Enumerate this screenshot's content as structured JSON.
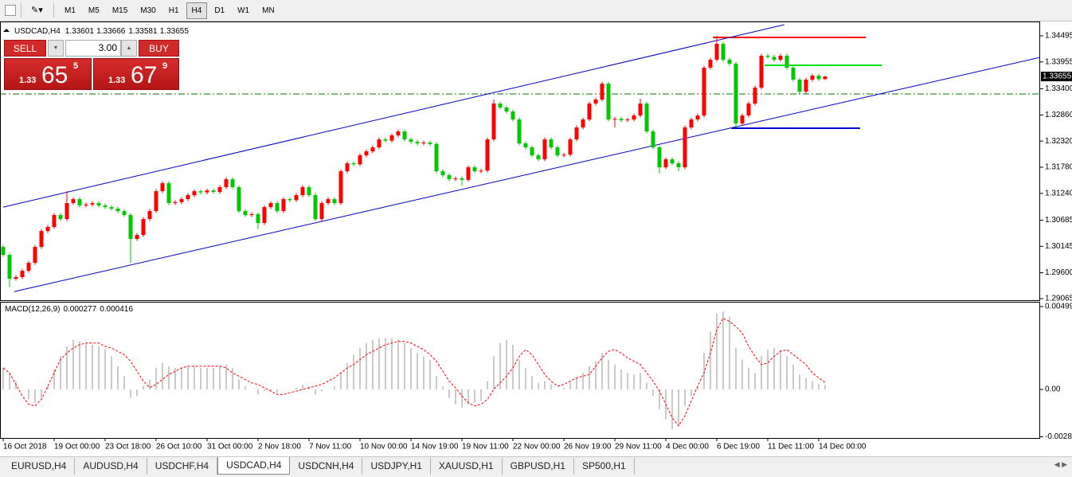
{
  "toolbar": {
    "timeframes": [
      "M1",
      "M5",
      "M15",
      "M30",
      "H1",
      "H4",
      "D1",
      "W1",
      "MN"
    ],
    "active": "H4"
  },
  "trade_panel": {
    "sell": "SELL",
    "buy": "BUY",
    "lot": "3.00",
    "sell_price": {
      "big_figure": "1.33",
      "pips": "65",
      "fraction": "5"
    },
    "buy_price": {
      "big_figure": "1.33",
      "pips": "67",
      "fraction": "9"
    }
  },
  "tabs": {
    "items": [
      "EURUSD,H4",
      "AUDUSD,H4",
      "USDCHF,H4",
      "USDCAD,H4",
      "USDCNH,H4",
      "USDJPY,H1",
      "XAUUSD,H1",
      "GBPUSD,H1",
      "SP500,H1"
    ],
    "active": "USDCAD,H4"
  },
  "chart_data": [
    {
      "type": "candlestick",
      "title": "USDCAD,H4",
      "up_color": "#ff0000",
      "down_color": "#00c800",
      "categories": [
        "16 Oct 2018",
        null,
        null,
        null,
        null,
        null,
        null,
        null,
        "19 Oct 00:00",
        null,
        null,
        null,
        null,
        null,
        null,
        null,
        "23 Oct 18:00",
        null,
        null,
        null,
        null,
        null,
        null,
        null,
        "26 Oct 10:00",
        null,
        null,
        null,
        null,
        null,
        null,
        null,
        "31 Oct 00:00",
        null,
        null,
        null,
        null,
        null,
        null,
        null,
        "2 Nov 18:00",
        null,
        null,
        null,
        null,
        null,
        null,
        null,
        "7 Nov 11:00",
        null,
        null,
        null,
        null,
        null,
        null,
        null,
        "10 Nov 00:00",
        null,
        null,
        null,
        null,
        null,
        null,
        null,
        "14 Nov 19:00",
        null,
        null,
        null,
        null,
        null,
        null,
        null,
        "19 Nov 11:00",
        null,
        null,
        null,
        null,
        null,
        null,
        null,
        "22 Nov 00:00",
        null,
        null,
        null,
        null,
        null,
        null,
        null,
        "26 Nov 19:00",
        null,
        null,
        null,
        null,
        null,
        null,
        null,
        "29 Nov 11:00",
        null,
        null,
        null,
        null,
        null,
        null,
        null,
        "4 Dec 00:00",
        null,
        null,
        null,
        null,
        null,
        null,
        null,
        "6 Dec 19:00",
        null,
        null,
        null,
        null,
        null,
        null,
        null,
        "11 Dec 11:00",
        null,
        null,
        null,
        null,
        null,
        null,
        null,
        "14 Dec 00:00",
        null
      ],
      "open": [
        1.30133,
        1.29969,
        1.29475,
        1.2951,
        1.29639,
        1.29804,
        1.30133,
        1.30462,
        1.30545,
        1.30792,
        1.30709,
        1.31039,
        1.31121,
        1.30989,
        1.3101,
        1.31039,
        1.30989,
        1.30956,
        1.30923,
        1.30874,
        1.30792,
        1.30298,
        1.3038,
        1.30709,
        1.30874,
        1.31285,
        1.3145,
        1.31039,
        1.3106,
        1.31121,
        1.31203,
        1.31285,
        1.3126,
        1.313,
        1.3127,
        1.31368,
        1.31532,
        1.31368,
        1.30874,
        1.30792,
        1.3081,
        1.30627,
        1.30956,
        1.31039,
        1.30874,
        1.31121,
        1.311,
        1.31203,
        1.31368,
        1.31203,
        1.30709,
        1.31039,
        1.31121,
        1.31039,
        1.31697,
        1.31861,
        1.3184,
        1.32026,
        1.32108,
        1.32191,
        1.32355,
        1.3233,
        1.32438,
        1.3252,
        1.32355,
        1.32306,
        1.32273,
        1.3229,
        1.3226,
        1.31697,
        1.31615,
        1.31532,
        1.3155,
        1.3152,
        1.31779,
        1.31697,
        1.3171,
        1.32355,
        1.33096,
        1.33014,
        1.32931,
        1.32767,
        1.32273,
        1.32191,
        1.32026,
        1.31944,
        1.32355,
        1.32191,
        1.32026,
        1.3204,
        1.32355,
        1.32602,
        1.32767,
        1.33096,
        1.33178,
        1.33507,
        1.32767,
        1.3278,
        1.3275,
        1.32767,
        1.32849,
        1.33096,
        1.3252,
        1.32191,
        1.31779,
        1.31944,
        1.31861,
        1.31779,
        1.32602,
        1.32767,
        1.32849,
        1.33837,
        1.34001,
        1.3433,
        1.34001,
        1.33919,
        1.32684,
        1.32849,
        1.33096,
        1.33425,
        1.34084,
        1.3406,
        1.34001,
        1.34084,
        1.33837,
        1.3359,
        1.33343,
        1.3359,
        1.33672,
        1.33601
      ],
      "high": [
        1.30173,
        1.30009,
        1.2955,
        1.29679,
        1.29844,
        1.30173,
        1.30502,
        1.30585,
        1.30832,
        1.30832,
        1.31285,
        1.31161,
        1.31161,
        1.3105,
        1.31079,
        1.31079,
        1.31029,
        1.30996,
        1.30963,
        1.30914,
        1.30832,
        1.3042,
        1.30749,
        1.30914,
        1.31325,
        1.3149,
        1.3149,
        1.311,
        1.31161,
        1.31243,
        1.31325,
        1.31325,
        1.3134,
        1.3134,
        1.31408,
        1.31572,
        1.31572,
        1.31408,
        1.30914,
        1.3085,
        1.3085,
        1.30996,
        1.31079,
        1.31079,
        1.31161,
        1.31161,
        1.31243,
        1.31408,
        1.31408,
        1.31243,
        1.31079,
        1.31161,
        1.31161,
        1.31737,
        1.31901,
        1.31901,
        1.32066,
        1.32148,
        1.32231,
        1.32395,
        1.32395,
        1.32478,
        1.3256,
        1.3256,
        1.32395,
        1.32346,
        1.3233,
        1.3233,
        1.323,
        1.31737,
        1.31655,
        1.3159,
        1.3159,
        1.31819,
        1.31819,
        1.3175,
        1.32395,
        1.3318,
        1.33136,
        1.33054,
        1.32971,
        1.32807,
        1.32313,
        1.32231,
        1.32066,
        1.32395,
        1.32395,
        1.32231,
        1.3208,
        1.32395,
        1.32642,
        1.32807,
        1.33136,
        1.33218,
        1.33547,
        1.33547,
        1.3282,
        1.3282,
        1.32807,
        1.32889,
        1.332,
        1.33136,
        1.3256,
        1.32231,
        1.31984,
        1.31984,
        1.31901,
        1.32642,
        1.32807,
        1.32889,
        1.33877,
        1.34041,
        1.34495,
        1.3437,
        1.34041,
        1.33959,
        1.32889,
        1.33136,
        1.33465,
        1.34124,
        1.34124,
        1.341,
        1.34124,
        1.34124,
        1.33877,
        1.3363,
        1.3363,
        1.33712,
        1.33712,
        1.33666
      ],
      "low": [
        1.29929,
        1.293,
        1.29435,
        1.2947,
        1.29599,
        1.29764,
        1.30093,
        1.30422,
        1.30505,
        1.30669,
        1.30669,
        1.30999,
        1.30949,
        1.30949,
        1.3097,
        1.30949,
        1.30916,
        1.30883,
        1.30834,
        1.30752,
        1.298,
        1.30258,
        1.3034,
        1.30669,
        1.30834,
        1.31245,
        1.30999,
        1.30999,
        1.3102,
        1.31081,
        1.31163,
        1.3122,
        1.3122,
        1.3123,
        1.3123,
        1.31328,
        1.31328,
        1.30834,
        1.30752,
        1.30752,
        1.305,
        1.30587,
        1.30916,
        1.30834,
        1.30834,
        1.3106,
        1.3106,
        1.31163,
        1.31163,
        1.30669,
        1.30669,
        1.30999,
        1.30999,
        1.30999,
        1.31657,
        1.318,
        1.318,
        1.31986,
        1.32068,
        1.32151,
        1.3229,
        1.3229,
        1.32398,
        1.32315,
        1.32266,
        1.32233,
        1.32233,
        1.3222,
        1.31657,
        1.31575,
        1.31492,
        1.31492,
        1.314,
        1.3148,
        1.31657,
        1.31657,
        1.3167,
        1.32315,
        1.32974,
        1.32891,
        1.32727,
        1.32233,
        1.32151,
        1.31986,
        1.31904,
        1.31904,
        1.32151,
        1.31986,
        1.31986,
        1.32,
        1.32315,
        1.32562,
        1.32727,
        1.33056,
        1.33138,
        1.32727,
        1.326,
        1.3271,
        1.3271,
        1.32727,
        1.32809,
        1.3248,
        1.32151,
        1.3165,
        1.31739,
        1.31821,
        1.317,
        1.31739,
        1.32562,
        1.32727,
        1.32809,
        1.33797,
        1.33961,
        1.33961,
        1.33879,
        1.326,
        1.32644,
        1.32809,
        1.33056,
        1.33385,
        1.3402,
        1.33961,
        1.33961,
        1.33797,
        1.3355,
        1.33303,
        1.33303,
        1.3355,
        1.33561,
        1.33581
      ],
      "close": [
        1.29969,
        1.29475,
        1.2951,
        1.29639,
        1.29804,
        1.30133,
        1.30462,
        1.30545,
        1.30792,
        1.30709,
        1.31039,
        1.31121,
        1.30989,
        1.3101,
        1.31039,
        1.30989,
        1.30956,
        1.30923,
        1.30874,
        1.30792,
        1.30298,
        1.3038,
        1.30709,
        1.30874,
        1.31285,
        1.3145,
        1.31039,
        1.3106,
        1.31121,
        1.31203,
        1.31285,
        1.3126,
        1.313,
        1.3127,
        1.31368,
        1.31532,
        1.31368,
        1.30874,
        1.30792,
        1.3081,
        1.30627,
        1.30956,
        1.31039,
        1.30874,
        1.31121,
        1.311,
        1.31203,
        1.31368,
        1.31203,
        1.30709,
        1.31039,
        1.31121,
        1.31039,
        1.31697,
        1.31861,
        1.3184,
        1.32026,
        1.32108,
        1.32191,
        1.32355,
        1.3233,
        1.32438,
        1.3252,
        1.32355,
        1.32306,
        1.32273,
        1.3229,
        1.3226,
        1.31697,
        1.31615,
        1.31532,
        1.3155,
        1.3152,
        1.31779,
        1.31697,
        1.3171,
        1.32355,
        1.33096,
        1.33014,
        1.32931,
        1.32767,
        1.32273,
        1.32191,
        1.32026,
        1.31944,
        1.32355,
        1.32191,
        1.32026,
        1.3204,
        1.32355,
        1.32602,
        1.32767,
        1.33096,
        1.33178,
        1.33507,
        1.32767,
        1.3278,
        1.3275,
        1.32767,
        1.32849,
        1.33096,
        1.3252,
        1.32191,
        1.31779,
        1.31944,
        1.31861,
        1.31779,
        1.32602,
        1.32767,
        1.32849,
        1.33837,
        1.34001,
        1.3433,
        1.34001,
        1.33919,
        1.32684,
        1.32849,
        1.33096,
        1.33425,
        1.34084,
        1.3406,
        1.34001,
        1.34084,
        1.33837,
        1.3359,
        1.33343,
        1.3359,
        1.33672,
        1.33601,
        1.33655
      ],
      "ylim": [
        1.29032,
        1.34775
      ],
      "yticks": [
        1.34495,
        1.33955,
        {
          "value": 1.334,
          "label": "1.33400"
        },
        {
          "value": 1.3286,
          "label": "1.32860"
        },
        {
          "value": 1.3232,
          "label": "1.32320"
        },
        {
          "value": 1.3178,
          "label": "1.31780"
        },
        {
          "value": 1.3124,
          "label": "1.31240"
        },
        1.30685,
        1.30145,
        {
          "value": 1.296,
          "label": "1.29600"
        },
        1.29065
      ],
      "trendlines": [
        {
          "color": "#0000c0",
          "from": [
            0,
            1.30956
          ],
          "to": [
            122.6,
            1.34725
          ]
        },
        {
          "color": "#0000c0",
          "from": [
            1.75,
            1.29211
          ],
          "to": [
            162.75,
            1.34051
          ]
        }
      ],
      "levels": [
        {
          "price": 1.34462,
          "color": "#ff0000",
          "from": 111.4,
          "to": 135.4
        },
        {
          "price": 1.33886,
          "color": "#00e000",
          "from": 119.5,
          "to": 137.9
        },
        {
          "price": 1.32586,
          "color": "#0000cc",
          "from": 114.3,
          "to": 134.5
        },
        {
          "price": 1.33294,
          "color": "#007a00",
          "dashed": true
        }
      ]
    },
    {
      "type": "macd",
      "title": "MACD(12,26,9)",
      "series": [
        {
          "color": "#b4b4b4",
          "values": [
            0.0013,
            0.001,
            0.0005,
            0.0,
            -0.0006,
            -0.0008,
            -0.0005,
            0.0002,
            0.0012,
            0.002,
            0.0026,
            0.003,
            0.0029,
            0.0028,
            0.0027,
            0.0026,
            0.0024,
            0.002,
            0.0014,
            0.0008,
            -0.0005,
            -0.0004,
            0.0002,
            0.0006,
            0.0013,
            0.0016,
            0.0014,
            0.0013,
            0.0013,
            0.0014,
            0.0014,
            0.0013,
            0.0013,
            0.0013,
            0.0014,
            0.0015,
            0.0013,
            0.0006,
            0.0002,
            0.0,
            -0.0003,
            -0.0001,
            -0.0001,
            -0.0002,
            0.0,
            0.0,
            0.0001,
            0.0003,
            0.0002,
            -0.0003,
            -0.0001,
            0.0,
            0.0002,
            0.001,
            0.0016,
            0.0021,
            0.0025,
            0.0028,
            0.003,
            0.0031,
            0.0031,
            0.0031,
            0.003,
            0.0028,
            0.0025,
            0.0022,
            0.002,
            0.0018,
            0.0008,
            0.0002,
            -0.0005,
            -0.0009,
            -0.0011,
            -0.0009,
            -0.0008,
            -0.0007,
            0.0005,
            0.002,
            0.0028,
            0.003,
            0.0027,
            0.0018,
            0.0013,
            0.0008,
            0.0004,
            0.0005,
            0.0003,
            0.0,
            0.0001,
            0.0004,
            0.0007,
            0.001,
            0.0014,
            0.0017,
            0.0022,
            0.0018,
            0.0015,
            0.0012,
            0.001,
            0.0009,
            0.001,
            0.0004,
            -0.0004,
            -0.0012,
            -0.0018,
            -0.0024,
            -0.0022,
            -0.001,
            -0.0004,
            0.0002,
            0.0022,
            0.0035,
            0.0046,
            0.0047,
            0.0044,
            0.0025,
            0.0018,
            0.0013,
            0.001,
            0.002,
            0.0024,
            0.0025,
            0.0024,
            0.002,
            0.0015,
            0.0009,
            0.0007,
            0.0005,
            0.0003,
            0.000277
          ]
        },
        {
          "color": "#ff0000",
          "dashed": true,
          "values": [
            0.0013,
            0.001,
            0.0003,
            -0.0004,
            -0.0009,
            -0.001,
            -0.0006,
            0.0002,
            0.001,
            0.0018,
            0.0022,
            0.0025,
            0.0027,
            0.0028,
            0.0028,
            0.0028,
            0.0026,
            0.0025,
            0.0023,
            0.0021,
            0.0017,
            0.0011,
            0.0005,
            0.0001,
            0.0003,
            0.0006,
            0.0009,
            0.0011,
            0.0013,
            0.0014,
            0.0014,
            0.0014,
            0.0014,
            0.0014,
            0.0014,
            0.0013,
            0.001,
            0.0008,
            0.0006,
            0.0004,
            0.0003,
            0.0001,
            -0.0001,
            -0.0003,
            -0.0003,
            -0.0002,
            -0.0001,
            0.0,
            0.0001,
            0.0002,
            0.0003,
            0.0005,
            0.0007,
            0.001,
            0.0013,
            0.0015,
            0.0018,
            0.0021,
            0.0023,
            0.0025,
            0.0027,
            0.0028,
            0.0029,
            0.0029,
            0.0028,
            0.0026,
            0.0024,
            0.0021,
            0.0017,
            0.0011,
            0.0005,
            0.0001,
            -0.0004,
            -0.0008,
            -0.001,
            -0.0009,
            -0.0006,
            0.0,
            0.0004,
            0.0008,
            0.0013,
            0.002,
            0.0024,
            0.0021,
            0.0015,
            0.0009,
            0.0005,
            0.0002,
            0.0003,
            0.0005,
            0.0007,
            0.0008,
            0.0009,
            0.0014,
            0.0019,
            0.0023,
            0.0024,
            0.0022,
            0.0019,
            0.0017,
            0.0015,
            0.001,
            0.0005,
            -0.0001,
            -0.0009,
            -0.0017,
            -0.0022,
            -0.0016,
            -0.0007,
            0.0002,
            0.001,
            0.0022,
            0.0036,
            0.0043,
            0.0041,
            0.0038,
            0.0034,
            0.0026,
            0.002,
            0.0015,
            0.0016,
            0.002,
            0.0023,
            0.0024,
            0.0021,
            0.0018,
            0.0015,
            0.001,
            0.0007,
            0.000416
          ]
        }
      ],
      "ylim": [
        -0.00293,
        0.00524
      ],
      "yticks": [
        0.004999,
        {
          "value": 0,
          "label": "0.00"
        },
        -0.00286
      ]
    }
  ]
}
